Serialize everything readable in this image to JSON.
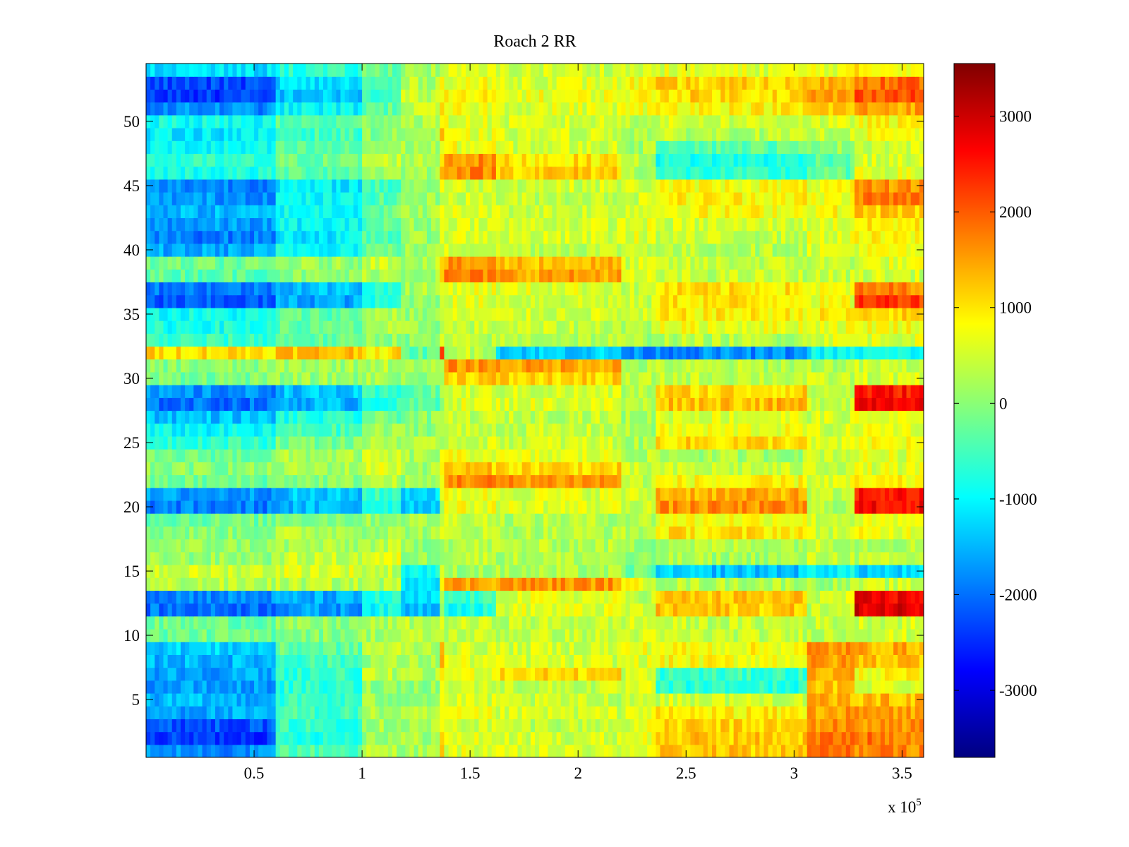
{
  "chart_data": {
    "type": "heatmap",
    "title": "Roach 2 RR",
    "xlabel": "",
    "ylabel": "",
    "x_multiplier_label": "x 10",
    "x_multiplier_exponent": "5",
    "xlim": [
      0,
      360000
    ],
    "ylim": [
      0.5,
      54.5
    ],
    "x_ticks": [
      {
        "value": 50000,
        "label": "0.5"
      },
      {
        "value": 100000,
        "label": "1"
      },
      {
        "value": 150000,
        "label": "1.5"
      },
      {
        "value": 200000,
        "label": "2"
      },
      {
        "value": 250000,
        "label": "2.5"
      },
      {
        "value": 300000,
        "label": "3"
      },
      {
        "value": 350000,
        "label": "3.5"
      }
    ],
    "y_ticks": [
      {
        "value": 5,
        "label": "5"
      },
      {
        "value": 10,
        "label": "10"
      },
      {
        "value": 15,
        "label": "15"
      },
      {
        "value": 20,
        "label": "20"
      },
      {
        "value": 25,
        "label": "25"
      },
      {
        "value": 30,
        "label": "30"
      },
      {
        "value": 35,
        "label": "35"
      },
      {
        "value": 40,
        "label": "40"
      },
      {
        "value": 45,
        "label": "45"
      },
      {
        "value": 50,
        "label": "50"
      }
    ],
    "colorbar": {
      "colormap": "jet",
      "clim": [
        -3700,
        3550
      ],
      "ticks": [
        {
          "value": 3000,
          "label": "3000"
        },
        {
          "value": 2000,
          "label": "2000"
        },
        {
          "value": 1000,
          "label": "1000"
        },
        {
          "value": 0,
          "label": "0"
        },
        {
          "value": -1000,
          "label": "-1000"
        },
        {
          "value": -2000,
          "label": "-2000"
        },
        {
          "value": -3000,
          "label": "-3000"
        }
      ]
    },
    "time_segment_edges": [
      0,
      60000,
      100000,
      118000,
      135000,
      138000,
      162000,
      220000,
      235000,
      305000,
      327000,
      360000
    ],
    "rows": {
      "1": [
        -1800,
        -400,
        300,
        200,
        1000,
        600,
        500,
        700,
        1200,
        1800,
        1700
      ],
      "2": [
        -2400,
        -700,
        200,
        200,
        1000,
        600,
        500,
        700,
        1200,
        1800,
        1800
      ],
      "3": [
        -2200,
        -600,
        200,
        200,
        900,
        500,
        400,
        600,
        1100,
        1600,
        1600
      ],
      "4": [
        -1600,
        -500,
        200,
        200,
        800,
        600,
        500,
        700,
        900,
        1500,
        1500
      ],
      "5": [
        -1500,
        -600,
        100,
        100,
        700,
        500,
        400,
        500,
        500,
        1300,
        1300
      ],
      "6": [
        -1700,
        -700,
        100,
        100,
        600,
        500,
        400,
        500,
        -700,
        1200,
        600
      ],
      "7": [
        -1600,
        -600,
        300,
        200,
        700,
        700,
        1100,
        500,
        -600,
        1400,
        800
      ],
      "8": [
        -1500,
        -500,
        200,
        200,
        1700,
        600,
        500,
        600,
        800,
        1500,
        1300
      ],
      "9": [
        -1300,
        -300,
        400,
        300,
        1400,
        500,
        500,
        700,
        800,
        1600,
        1400
      ],
      "10": [
        -200,
        0,
        200,
        300,
        400,
        400,
        400,
        500,
        400,
        400,
        500
      ],
      "11": [
        -200,
        0,
        200,
        300,
        400,
        400,
        400,
        500,
        400,
        400,
        500
      ],
      "12": [
        -2000,
        -1700,
        -900,
        -1400,
        400,
        -800,
        600,
        500,
        1200,
        400,
        2900
      ],
      "13": [
        -1800,
        -1600,
        -800,
        -1300,
        400,
        -600,
        600,
        400,
        1200,
        500,
        2700
      ],
      "14": [
        300,
        300,
        300,
        -1000,
        1200,
        1500,
        1600,
        700,
        300,
        200,
        400
      ],
      "15": [
        500,
        600,
        400,
        -900,
        300,
        200,
        200,
        -200,
        -1400,
        -1000,
        -1300
      ],
      "16": [
        100,
        400,
        600,
        100,
        300,
        400,
        300,
        -100,
        200,
        400,
        300
      ],
      "17": [
        100,
        200,
        300,
        100,
        300,
        300,
        300,
        100,
        300,
        400,
        300
      ],
      "18": [
        0,
        300,
        200,
        200,
        400,
        400,
        300,
        300,
        1000,
        500,
        700
      ],
      "19": [
        -200,
        0,
        100,
        200,
        400,
        500,
        300,
        300,
        800,
        500,
        600
      ],
      "20": [
        -1900,
        -1500,
        -700,
        -1300,
        500,
        700,
        600,
        500,
        1600,
        300,
        2600
      ],
      "21": [
        -1700,
        -1400,
        -600,
        -1200,
        500,
        700,
        600,
        500,
        1400,
        300,
        2500
      ],
      "22": [
        -200,
        0,
        300,
        100,
        800,
        1700,
        1600,
        400,
        800,
        600,
        800
      ],
      "23": [
        0,
        200,
        600,
        200,
        1100,
        1200,
        1100,
        400,
        400,
        500,
        600
      ],
      "24": [
        -200,
        200,
        400,
        200,
        600,
        700,
        600,
        300,
        200,
        500,
        600
      ],
      "25": [
        -600,
        -100,
        300,
        200,
        400,
        500,
        500,
        200,
        1100,
        500,
        800
      ],
      "26": [
        -1000,
        -500,
        100,
        100,
        300,
        400,
        400,
        200,
        700,
        500,
        700
      ],
      "27": [
        -1400,
        -800,
        -200,
        0,
        300,
        400,
        400,
        200,
        600,
        500,
        600
      ],
      "28": [
        -2000,
        -1500,
        -700,
        -400,
        300,
        600,
        600,
        300,
        1300,
        500,
        2800
      ],
      "29": [
        -1800,
        -1400,
        -700,
        -300,
        200,
        500,
        500,
        300,
        1100,
        400,
        2500
      ],
      "30": [
        -100,
        100,
        200,
        0,
        500,
        1200,
        1100,
        300,
        400,
        400,
        500
      ],
      "31": [
        0,
        200,
        300,
        100,
        600,
        1600,
        1500,
        200,
        300,
        300,
        400
      ],
      "32": [
        1100,
        1300,
        1000,
        -300,
        2000,
        400,
        -1300,
        -1800,
        -1800,
        -1000,
        -900
      ],
      "33": [
        -600,
        -300,
        100,
        0,
        400,
        300,
        300,
        200,
        300,
        600,
        600
      ],
      "34": [
        -800,
        -300,
        200,
        100,
        500,
        400,
        400,
        300,
        700,
        700,
        800
      ],
      "35": [
        -900,
        -300,
        300,
        100,
        500,
        500,
        500,
        400,
        900,
        900,
        1100
      ],
      "36": [
        -2200,
        -1600,
        -800,
        100,
        600,
        600,
        500,
        400,
        1000,
        700,
        2300
      ],
      "37": [
        -1900,
        -1400,
        -700,
        200,
        700,
        700,
        600,
        400,
        1000,
        700,
        1700
      ],
      "38": [
        -300,
        0,
        300,
        200,
        1100,
        1700,
        1500,
        500,
        400,
        400,
        500
      ],
      "39": [
        -200,
        100,
        500,
        300,
        1200,
        1500,
        1300,
        500,
        400,
        400,
        600
      ],
      "40": [
        -1600,
        -900,
        -200,
        100,
        600,
        500,
        400,
        500,
        300,
        600,
        700
      ],
      "41": [
        -1900,
        -1100,
        -400,
        100,
        700,
        600,
        500,
        600,
        400,
        600,
        800
      ],
      "42": [
        -1700,
        -1000,
        -300,
        100,
        700,
        600,
        500,
        600,
        500,
        600,
        900
      ],
      "43": [
        -1500,
        -900,
        -200,
        200,
        700,
        600,
        500,
        600,
        800,
        800,
        1200
      ],
      "44": [
        -1700,
        -1000,
        -400,
        100,
        600,
        500,
        400,
        500,
        900,
        700,
        1800
      ],
      "45": [
        -1800,
        -1100,
        -500,
        100,
        700,
        500,
        500,
        500,
        800,
        700,
        1600
      ],
      "46": [
        -800,
        -300,
        200,
        200,
        1400,
        1700,
        1200,
        300,
        -700,
        -300,
        600
      ],
      "47": [
        -700,
        -200,
        400,
        300,
        1200,
        1600,
        1000,
        300,
        -800,
        -300,
        500
      ],
      "48": [
        -1000,
        -400,
        100,
        200,
        600,
        700,
        500,
        200,
        -300,
        100,
        500
      ],
      "49": [
        -1100,
        -500,
        0,
        200,
        1100,
        600,
        500,
        300,
        300,
        400,
        700
      ],
      "50": [
        -900,
        -400,
        100,
        300,
        700,
        600,
        500,
        400,
        500,
        500,
        800
      ],
      "51": [
        -1800,
        -1000,
        -300,
        400,
        900,
        700,
        600,
        700,
        900,
        1200,
        1500
      ],
      "52": [
        -2400,
        -1400,
        -600,
        400,
        900,
        800,
        700,
        800,
        1100,
        1500,
        2100
      ],
      "53": [
        -2300,
        -1200,
        -500,
        300,
        800,
        700,
        600,
        800,
        1100,
        1400,
        1900
      ],
      "54": [
        -1200,
        -700,
        -200,
        200,
        600,
        500,
        500,
        500,
        600,
        700,
        900
      ]
    }
  }
}
